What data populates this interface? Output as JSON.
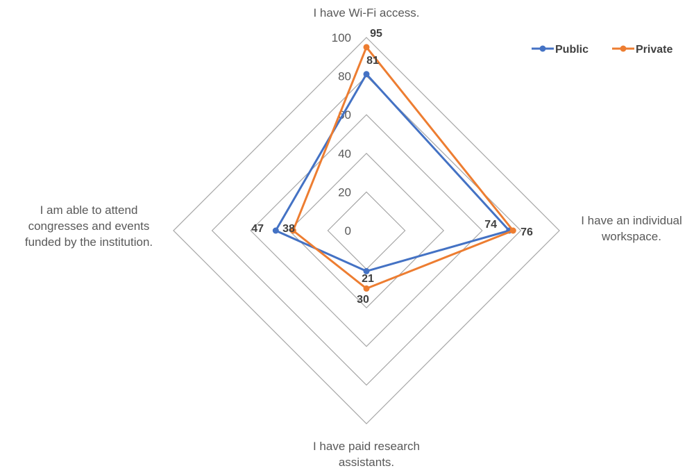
{
  "chart_data": {
    "type": "radar",
    "categories": [
      [
        "I have Wi-Fi access."
      ],
      [
        "I have an individual",
        "workspace."
      ],
      [
        "I have paid research",
        "assistants."
      ],
      [
        "I am able to attend",
        "congresses and events",
        "funded by the institution."
      ]
    ],
    "r_ticks": [
      0,
      20,
      40,
      60,
      80,
      100
    ],
    "r_range": [
      0,
      100
    ],
    "series": [
      {
        "name": "Public",
        "color": "#4472C4",
        "values": [
          81,
          74,
          21,
          47
        ]
      },
      {
        "name": "Private",
        "color": "#ED7D31",
        "values": [
          95,
          76,
          30,
          38
        ]
      }
    ],
    "legend_position": "top-right",
    "grid": true
  }
}
